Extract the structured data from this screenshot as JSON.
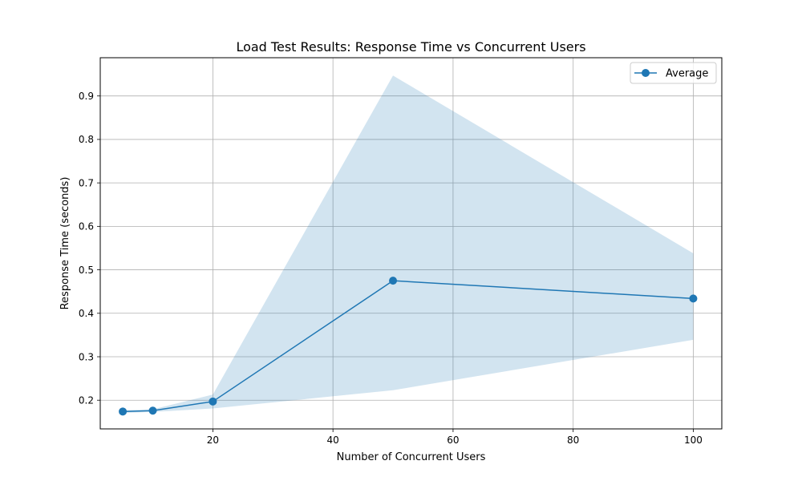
{
  "chart_data": {
    "type": "line",
    "title": "Load Test Results: Response Time vs Concurrent Users",
    "xlabel": "Number of Concurrent Users",
    "ylabel": "Response Time (seconds)",
    "xlim": [
      1.25,
      104.75
    ],
    "ylim": [
      0.134,
      0.988
    ],
    "xticks": [
      20,
      40,
      60,
      80,
      100
    ],
    "yticks": [
      0.2,
      0.3,
      0.4,
      0.5,
      0.6,
      0.7,
      0.8,
      0.9
    ],
    "grid": true,
    "legend_position": "top-right",
    "series": [
      {
        "name": "Average",
        "color": "#1f77b4",
        "marker": "circle",
        "x": [
          5,
          10,
          20,
          50,
          100
        ],
        "y": [
          0.174,
          0.176,
          0.197,
          0.475,
          0.434
        ]
      }
    ],
    "band": {
      "color": "#1f77b4",
      "opacity": 0.2,
      "x": [
        5,
        10,
        20,
        50,
        100
      ],
      "lower": [
        0.171,
        0.173,
        0.181,
        0.223,
        0.339
      ],
      "upper": [
        0.177,
        0.179,
        0.213,
        0.947,
        0.538
      ]
    }
  }
}
